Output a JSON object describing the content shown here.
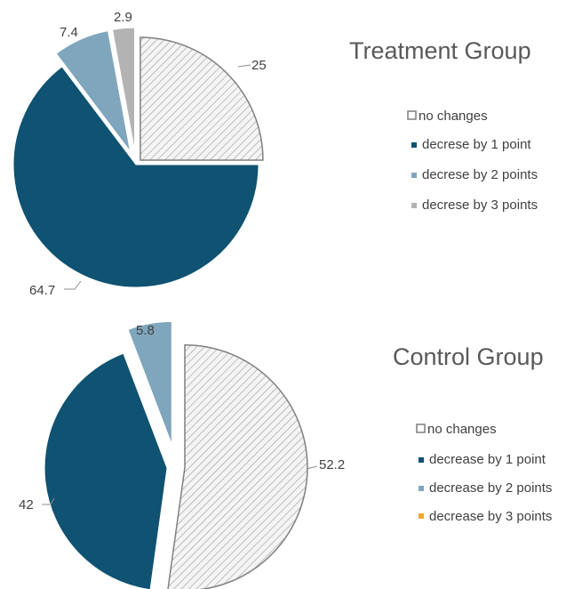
{
  "chart_data": [
    {
      "type": "pie",
      "title": "Treatment Group",
      "categories": [
        "no changes",
        "decrese by 1 point",
        "decrese by 2 points",
        "decrese by 3 points"
      ],
      "values": [
        25,
        64.7,
        7.4,
        2.9
      ],
      "data_labels": [
        "25",
        "64.7",
        "7.4",
        "2.9"
      ],
      "colors": [
        "#e6e6e6",
        "#0f5271",
        "#7fa6bd",
        "#b3b3b3"
      ],
      "patterns": [
        "diagonal-hatch",
        "solid",
        "solid",
        "solid"
      ],
      "exploded": true,
      "legend_placement": "right",
      "legend": [
        {
          "label": "no changes",
          "marker": "hollow-square"
        },
        {
          "label": "decrese by 1 point",
          "marker": "square"
        },
        {
          "label": "decrese by 2 points",
          "marker": "square"
        },
        {
          "label": "decrese by 3 points",
          "marker": "square"
        }
      ]
    },
    {
      "type": "pie",
      "title": "Control Group",
      "categories": [
        "no changes",
        "decrease by 1 point",
        "decrease by 2 points",
        "decrease by 3 points"
      ],
      "values": [
        52.2,
        42,
        5.8,
        0
      ],
      "data_labels": [
        "52.2",
        "42",
        "5.8",
        ""
      ],
      "colors": [
        "#e6e6e6",
        "#0f5271",
        "#7fa6bd",
        "#f0a830"
      ],
      "patterns": [
        "diagonal-hatch",
        "solid",
        "solid",
        "solid"
      ],
      "exploded": true,
      "legend_placement": "right",
      "legend": [
        {
          "label": "no changes",
          "marker": "hollow-square"
        },
        {
          "label": "decrease by 1 point",
          "marker": "square"
        },
        {
          "label": "decrease by 2 points",
          "marker": "square"
        },
        {
          "label": "decrease by 3 points",
          "marker": "square"
        }
      ]
    }
  ]
}
